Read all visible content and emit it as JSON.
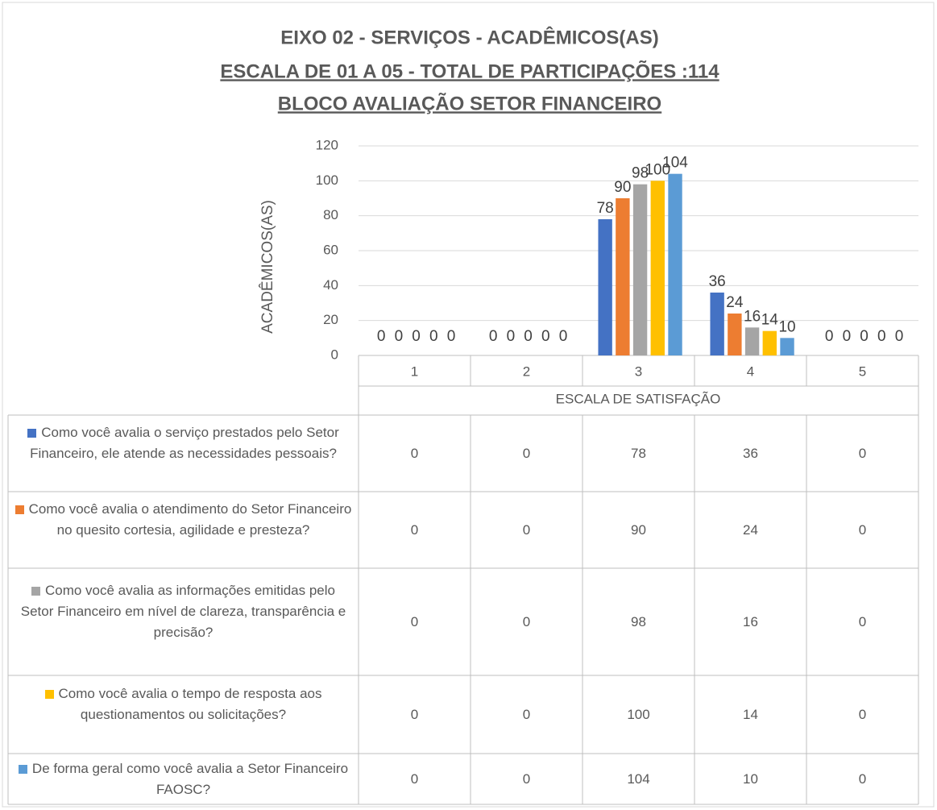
{
  "chart_data": {
    "type": "bar",
    "title": [
      "EIXO 02 -  SERVIÇOS - ACADÊMICOS(AS)",
      "ESCALA DE 01 A 05 - TOTAL  DE PARTICIPAÇÕES :114",
      "BLOCO AVALIAÇÃO SETOR FINANCEIRO"
    ],
    "y_label": "ACADÊMICOS(AS)",
    "x_label": "ESCALA DE SATISFAÇÃO",
    "categories": [
      "1",
      "2",
      "3",
      "4",
      "5"
    ],
    "ylim": [
      0,
      120
    ],
    "yticks": [
      0,
      20,
      40,
      60,
      80,
      100,
      120
    ],
    "grid": true,
    "series": [
      {
        "name": "Como você avalia o serviço prestados pelo Setor Financeiro, ele atende as necessidades pessoais?",
        "color": "#4472c4",
        "values": [
          0,
          0,
          78,
          36,
          0
        ]
      },
      {
        "name": "Como você avalia o atendimento do Setor Financeiro no quesito cortesia, agilidade e presteza?",
        "color": "#ed7d31",
        "values": [
          0,
          0,
          90,
          24,
          0
        ]
      },
      {
        "name": "Como você avalia as informações emitidas pelo Setor Financeiro em nível de clareza, transparência e precisão?",
        "color": "#a5a5a5",
        "values": [
          0,
          0,
          98,
          16,
          0
        ]
      },
      {
        "name": "Como você avalia o tempo de resposta aos questionamentos ou solicitações?",
        "color": "#ffc000",
        "values": [
          0,
          0,
          100,
          14,
          0
        ]
      },
      {
        "name": "De forma geral como você avalia a Setor Financeiro FAOSC?",
        "color": "#5b9bd5",
        "values": [
          0,
          0,
          104,
          10,
          0
        ]
      }
    ]
  }
}
